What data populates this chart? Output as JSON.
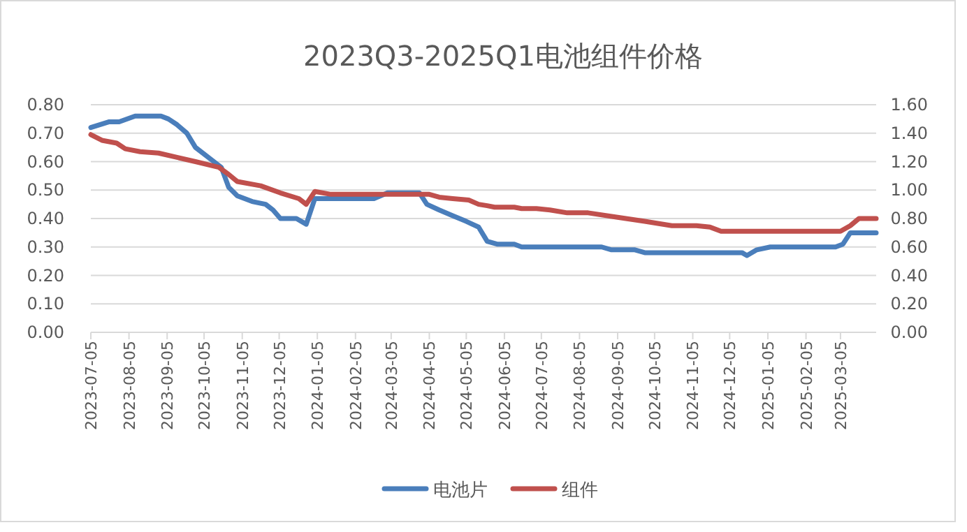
{
  "chart_data": {
    "type": "line",
    "title": "2023Q3-2025Q1电池组件价格",
    "xlim": [
      "2023-07-05",
      "2025-04-03"
    ],
    "xticks": [
      "2023-07-05",
      "2023-08-05",
      "2023-09-05",
      "2023-10-05",
      "2023-11-05",
      "2023-12-05",
      "2024-01-05",
      "2024-02-05",
      "2024-03-05",
      "2024-04-05",
      "2024-05-05",
      "2024-06-05",
      "2024-07-05",
      "2024-08-05",
      "2024-09-05",
      "2024-10-05",
      "2024-11-05",
      "2024-12-05",
      "2025-01-05",
      "2025-02-05",
      "2025-03-05"
    ],
    "ylim": [
      0,
      0.8
    ],
    "yticks": [
      {
        "value": 0,
        "label": "0.00"
      },
      {
        "value": 0.1,
        "label": "0.10"
      },
      {
        "value": 0.2,
        "label": "0.20"
      },
      {
        "value": 0.3,
        "label": "0.30"
      },
      {
        "value": 0.4,
        "label": "0.40"
      },
      {
        "value": 0.5,
        "label": "0.50"
      },
      {
        "value": 0.6,
        "label": "0.60"
      },
      {
        "value": 0.7,
        "label": "0.70"
      },
      {
        "value": 0.8,
        "label": "0.80"
      }
    ],
    "y2lim": [
      0,
      1.6
    ],
    "y2ticks": [
      {
        "value": 0,
        "label": "0.00"
      },
      {
        "value": 0.2,
        "label": "0.20"
      },
      {
        "value": 0.4,
        "label": "0.40"
      },
      {
        "value": 0.6,
        "label": "0.60"
      },
      {
        "value": 0.8,
        "label": "0.80"
      },
      {
        "value": 1.0,
        "label": "1.00"
      },
      {
        "value": 1.2,
        "label": "1.20"
      },
      {
        "value": 1.4,
        "label": "1.40"
      },
      {
        "value": 1.6,
        "label": "1.60"
      }
    ],
    "grid": "y",
    "legend": "bottom",
    "marker": "none",
    "line_style": "solid",
    "series": [
      {
        "name": "电池片",
        "color": "#4a7ebb",
        "x": [
          "2023-07-05",
          "2023-07-20",
          "2023-07-28",
          "2023-08-10",
          "2023-08-31",
          "2023-09-06",
          "2023-09-13",
          "2023-09-21",
          "2023-09-28",
          "2023-10-10",
          "2023-10-19",
          "2023-10-25",
          "2023-11-01",
          "2023-11-13",
          "2023-11-24",
          "2023-11-30",
          "2023-12-06",
          "2023-12-19",
          "2023-12-27",
          "2024-01-03",
          "2024-02-20",
          "2024-03-02",
          "2024-03-28",
          "2024-04-03",
          "2024-04-13",
          "2024-04-24",
          "2024-05-05",
          "2024-05-15",
          "2024-05-22",
          "2024-05-30",
          "2024-06-13",
          "2024-06-19",
          "2024-08-23",
          "2024-08-31",
          "2024-09-19",
          "2024-09-27",
          "2024-12-15",
          "2024-12-19",
          "2024-12-27",
          "2025-01-07",
          "2025-03-01",
          "2025-03-07",
          "2025-03-13",
          "2025-04-03"
        ],
        "values": [
          0.72,
          0.74,
          0.74,
          0.76,
          0.76,
          0.75,
          0.73,
          0.7,
          0.65,
          0.61,
          0.58,
          0.51,
          0.48,
          0.46,
          0.45,
          0.43,
          0.4,
          0.4,
          0.38,
          0.47,
          0.47,
          0.49,
          0.49,
          0.45,
          0.43,
          0.41,
          0.39,
          0.37,
          0.32,
          0.31,
          0.31,
          0.3,
          0.3,
          0.29,
          0.29,
          0.28,
          0.28,
          0.27,
          0.29,
          0.3,
          0.3,
          0.31,
          0.35,
          0.35
        ]
      },
      {
        "name": "组件",
        "color": "#c0504d",
        "axis": "y2",
        "x": [
          "2023-07-05",
          "2023-07-14",
          "2023-07-26",
          "2023-08-02",
          "2023-08-14",
          "2023-08-29",
          "2023-09-13",
          "2023-09-28",
          "2023-10-17",
          "2023-10-25",
          "2023-11-01",
          "2023-11-20",
          "2023-12-06",
          "2023-12-21",
          "2023-12-27",
          "2024-01-03",
          "2024-01-16",
          "2024-03-28",
          "2024-04-05",
          "2024-04-13",
          "2024-04-24",
          "2024-05-07",
          "2024-05-15",
          "2024-05-22",
          "2024-05-28",
          "2024-06-13",
          "2024-06-19",
          "2024-07-01",
          "2024-07-12",
          "2024-07-26",
          "2024-08-12",
          "2024-09-04",
          "2024-09-27",
          "2024-10-19",
          "2024-11-08",
          "2024-11-19",
          "2024-11-28",
          "2025-03-05",
          "2025-03-13",
          "2025-03-20",
          "2025-04-03"
        ],
        "values": [
          1.39,
          1.35,
          1.33,
          1.29,
          1.27,
          1.26,
          1.23,
          1.2,
          1.16,
          1.11,
          1.06,
          1.03,
          0.98,
          0.94,
          0.9,
          0.99,
          0.97,
          0.97,
          0.97,
          0.95,
          0.94,
          0.93,
          0.9,
          0.89,
          0.88,
          0.88,
          0.87,
          0.87,
          0.86,
          0.84,
          0.84,
          0.81,
          0.78,
          0.75,
          0.75,
          0.74,
          0.71,
          0.71,
          0.75,
          0.8,
          0.8
        ]
      }
    ]
  }
}
